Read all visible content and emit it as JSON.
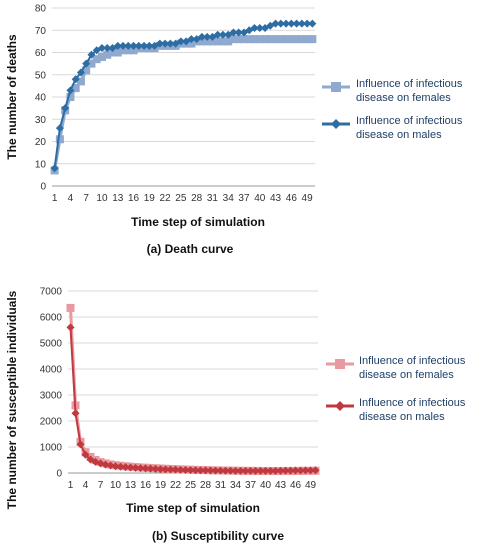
{
  "chart_data": [
    {
      "type": "line",
      "caption": "(a) Death curve",
      "xlabel": "Time step of simulation",
      "ylabel": "The number of deaths",
      "ylim": [
        0,
        80
      ],
      "yticks": [
        0,
        10,
        20,
        30,
        40,
        50,
        60,
        70,
        80
      ],
      "x_tick_labels": [
        "1",
        "4",
        "7",
        "10",
        "13",
        "16",
        "19",
        "22",
        "25",
        "28",
        "31",
        "34",
        "37",
        "40",
        "43",
        "46",
        "49"
      ],
      "grid": "horizontal",
      "legend_position": "right",
      "x": [
        1,
        2,
        3,
        4,
        5,
        6,
        7,
        8,
        9,
        10,
        11,
        12,
        13,
        14,
        15,
        16,
        17,
        18,
        19,
        20,
        21,
        22,
        23,
        24,
        25,
        26,
        27,
        28,
        29,
        30,
        31,
        32,
        33,
        34,
        35,
        36,
        37,
        38,
        39,
        40,
        41,
        42,
        43,
        44,
        45,
        46,
        47,
        48,
        49,
        50
      ],
      "series": [
        {
          "name": "Influence of infectious disease on females",
          "color": "#8fa9cf",
          "marker": "square",
          "values": [
            7,
            21,
            34,
            40,
            44,
            47,
            52,
            55,
            57,
            58,
            59,
            60,
            60,
            61,
            61,
            61,
            62,
            62,
            62,
            62,
            63,
            63,
            63,
            63,
            64,
            64,
            64,
            65,
            65,
            65,
            65,
            65,
            65,
            65,
            66,
            66,
            66,
            66,
            66,
            66,
            66,
            66,
            66,
            66,
            66,
            66,
            66,
            66,
            66,
            66
          ]
        },
        {
          "name": "Influence of infectious disease on males",
          "color": "#2e6da4",
          "marker": "diamond",
          "values": [
            8,
            26,
            35,
            43,
            48,
            51,
            55,
            59,
            61,
            62,
            62,
            62,
            63,
            63,
            63,
            63,
            63,
            63,
            63,
            63,
            64,
            64,
            64,
            64,
            65,
            65,
            66,
            66,
            67,
            67,
            67,
            68,
            68,
            68,
            69,
            69,
            69,
            70,
            71,
            71,
            71,
            72,
            73,
            73,
            73,
            73,
            73,
            73,
            73,
            73
          ]
        }
      ]
    },
    {
      "type": "line",
      "caption": "(b) Susceptibility curve",
      "xlabel": "Time step of simulation",
      "ylabel": "The number of susceptible  individuals",
      "ylim": [
        0,
        7000
      ],
      "yticks": [
        0,
        1000,
        2000,
        3000,
        4000,
        5000,
        6000,
        7000
      ],
      "x_tick_labels": [
        "1",
        "4",
        "7",
        "10",
        "13",
        "16",
        "19",
        "22",
        "25",
        "28",
        "31",
        "34",
        "37",
        "40",
        "43",
        "46",
        "49"
      ],
      "grid": "horizontal",
      "legend_position": "right",
      "x": [
        1,
        2,
        3,
        4,
        5,
        6,
        7,
        8,
        9,
        10,
        11,
        12,
        13,
        14,
        15,
        16,
        17,
        18,
        19,
        20,
        21,
        22,
        23,
        24,
        25,
        26,
        27,
        28,
        29,
        30,
        31,
        32,
        33,
        34,
        35,
        36,
        37,
        38,
        39,
        40,
        41,
        42,
        43,
        44,
        45,
        46,
        47,
        48,
        49,
        50
      ],
      "series": [
        {
          "name": "Influence of infectious disease on females",
          "color": "#e89aa0",
          "marker": "square",
          "values": [
            6350,
            2600,
            1200,
            800,
            620,
            500,
            420,
            370,
            330,
            300,
            280,
            260,
            245,
            230,
            215,
            205,
            195,
            185,
            175,
            165,
            155,
            148,
            140,
            133,
            127,
            121,
            116,
            111,
            106,
            102,
            98,
            95,
            92,
            89,
            86,
            84,
            82,
            80,
            78,
            77,
            76,
            75,
            75,
            76,
            78,
            80,
            82,
            84,
            86,
            88
          ]
        },
        {
          "name": "Influence of infectious disease on males",
          "color": "#c0393f",
          "marker": "diamond",
          "values": [
            5600,
            2300,
            1100,
            700,
            520,
            430,
            370,
            320,
            290,
            260,
            240,
            225,
            210,
            198,
            186,
            176,
            166,
            157,
            149,
            141,
            134,
            128,
            122,
            117,
            112,
            107,
            103,
            99,
            96,
            93,
            90,
            88,
            86,
            84,
            82,
            81,
            80,
            80,
            80,
            81,
            82,
            84,
            86,
            89,
            92,
            95,
            98,
            100,
            102,
            104
          ]
        }
      ]
    }
  ]
}
